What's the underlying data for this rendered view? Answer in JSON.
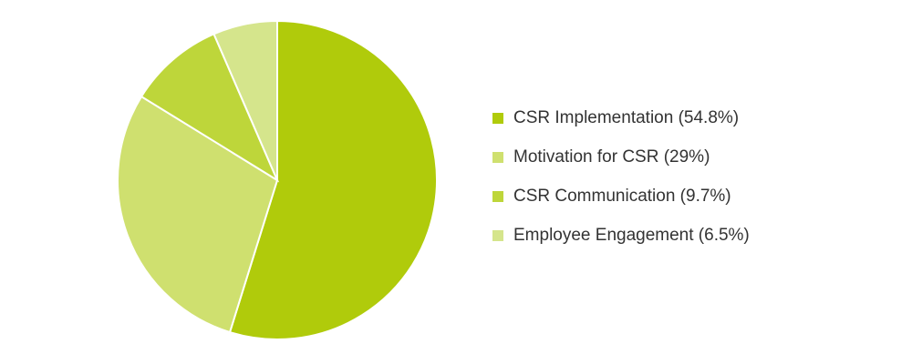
{
  "chart_data": {
    "type": "pie",
    "categories": [
      "CSR Implementation (54.8%)",
      "Motivation for CSR (29%)",
      "CSR Communication (9.7%)",
      "Employee Engagement (6.5%)"
    ],
    "values": [
      54.8,
      29,
      9.7,
      6.5
    ],
    "colors": [
      "#b0cb0b",
      "#cfe06f",
      "#bed63a",
      "#d5e58c"
    ],
    "legend": "right"
  }
}
